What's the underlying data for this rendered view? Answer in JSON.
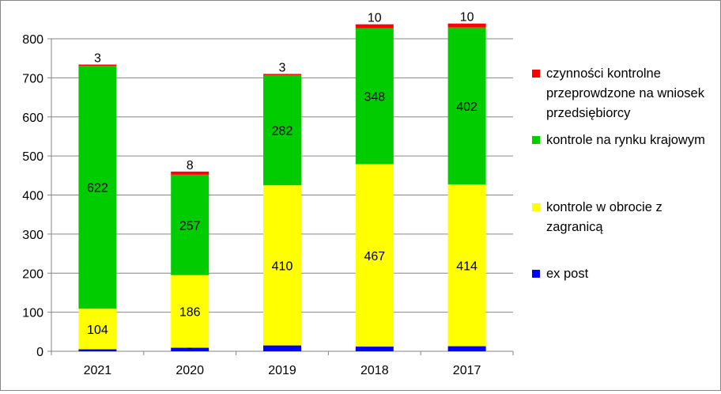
{
  "chart_data": {
    "type": "bar",
    "stacked": true,
    "categories": [
      "2021",
      "2020",
      "2019",
      "2018",
      "2017"
    ],
    "series": [
      {
        "name": "ex post",
        "color": "#0000FF",
        "values": [
          5,
          9,
          15,
          12,
          13
        ]
      },
      {
        "name": "kontrole w obrocie z zagranicą",
        "color": "#FFFF00",
        "values": [
          104,
          186,
          410,
          467,
          414
        ]
      },
      {
        "name": "kontrole na rynku krajowym",
        "color": "#00CC00",
        "values": [
          622,
          257,
          282,
          348,
          402
        ]
      },
      {
        "name": "czynności kontrolne przeprowdzone na wniosek przedsiębiorcy",
        "color": "#FF0000",
        "values": [
          3,
          8,
          3,
          10,
          10
        ]
      }
    ],
    "ylim": [
      0,
      800
    ],
    "yticks": [
      "0",
      "100",
      "200",
      "300",
      "400",
      "500",
      "600",
      "700",
      "800"
    ],
    "grid": true,
    "legend_position": "right",
    "title": "",
    "xlabel": "",
    "ylabel": ""
  }
}
